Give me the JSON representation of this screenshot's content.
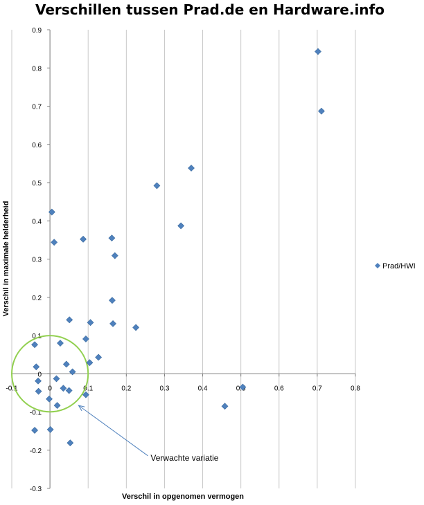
{
  "chart_data": {
    "type": "scatter",
    "title": "Verschillen tussen Prad.de en Hardware.info",
    "xlabel": "Verschil in opgenomen vermogen",
    "ylabel": "Verschil in maximale helderheid",
    "xlim": [
      -0.1,
      0.8
    ],
    "ylim": [
      -0.3,
      0.9
    ],
    "x_ticks": [
      "-0.1",
      "0",
      "0.1",
      "0.2",
      "0.3",
      "0.4",
      "0.5",
      "0.6",
      "0.7",
      "0.8"
    ],
    "y_ticks": [
      "-0.3",
      "-0.2",
      "-0.1",
      "0",
      "0.1",
      "0.2",
      "0.3",
      "0.4",
      "0.5",
      "0.6",
      "0.7",
      "0.8",
      "0.9"
    ],
    "grid": "vertical",
    "legend": "right",
    "series": [
      {
        "name": "Prad/HWI",
        "color": "#4f81bd",
        "marker": "diamond",
        "points": [
          [
            0.702,
            0.843
          ],
          [
            0.711,
            0.687
          ],
          [
            0.37,
            0.538
          ],
          [
            0.28,
            0.492
          ],
          [
            0.343,
            0.387
          ],
          [
            0.005,
            0.423
          ],
          [
            0.011,
            0.344
          ],
          [
            0.087,
            0.352
          ],
          [
            0.162,
            0.355
          ],
          [
            0.17,
            0.309
          ],
          [
            0.163,
            0.192
          ],
          [
            0.165,
            0.131
          ],
          [
            0.225,
            0.121
          ],
          [
            0.106,
            0.134
          ],
          [
            0.051,
            0.141
          ],
          [
            0.094,
            0.091
          ],
          [
            0.027,
            0.08
          ],
          [
            -0.04,
            0.076
          ],
          [
            0.127,
            0.043
          ],
          [
            0.104,
            0.029
          ],
          [
            0.043,
            0.025
          ],
          [
            -0.036,
            0.018
          ],
          [
            0.059,
            0.005
          ],
          [
            0.017,
            -0.013
          ],
          [
            -0.031,
            -0.019
          ],
          [
            0.035,
            -0.038
          ],
          [
            0.05,
            -0.044
          ],
          [
            -0.03,
            -0.046
          ],
          [
            0.094,
            -0.055
          ],
          [
            -0.002,
            -0.066
          ],
          [
            0.019,
            -0.083
          ],
          [
            0.505,
            -0.035
          ],
          [
            0.458,
            -0.085
          ],
          [
            -0.04,
            -0.148
          ],
          [
            0.001,
            -0.146
          ],
          [
            0.053,
            -0.181
          ]
        ]
      }
    ],
    "shapes": [
      {
        "type": "circle",
        "center": [
          0.0,
          0.0
        ],
        "radius_x": 0.1,
        "color": "#92d050"
      }
    ],
    "annotations": [
      {
        "text": "Verwachte variatie",
        "arrow_to": [
          0.075,
          -0.083
        ],
        "text_at": [
          0.26,
          -0.22
        ]
      }
    ]
  }
}
